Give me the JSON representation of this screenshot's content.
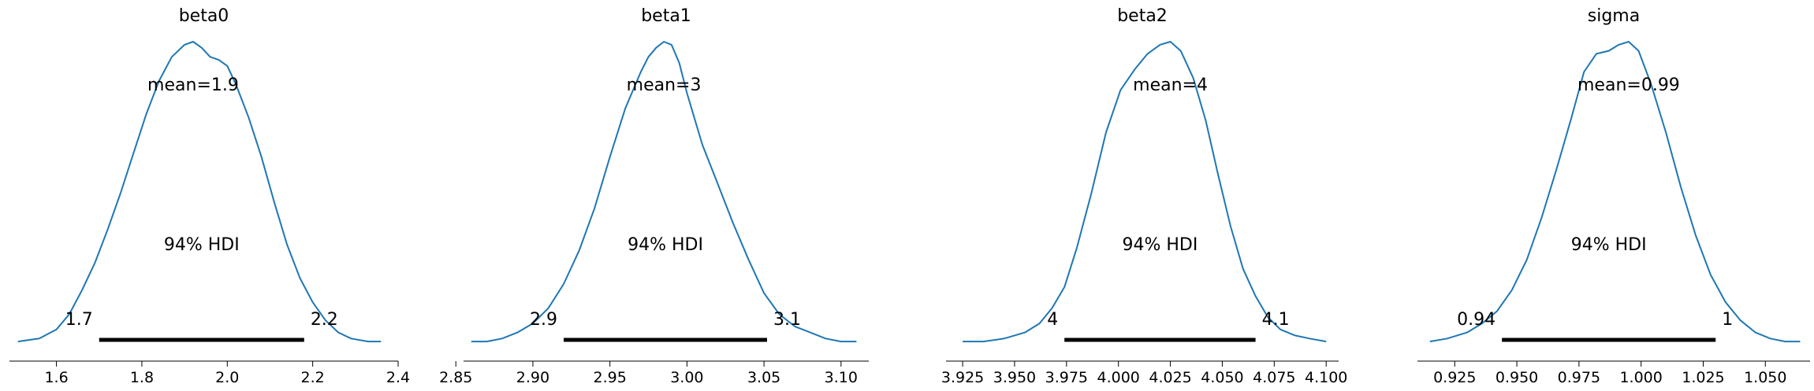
{
  "colors": {
    "kde_line": "#1f77b4",
    "hdi_bar": "#000000",
    "text": "#000000"
  },
  "chart_data": [
    {
      "type": "line",
      "title": "beta0",
      "mean_label": "mean=1.9",
      "hdi_label": "94% HDI",
      "hdi_low_label": "1.7",
      "hdi_high_label": "2.2",
      "hdi": [
        1.7,
        2.18
      ],
      "xlim": [
        1.49,
        2.4
      ],
      "xticks": [
        1.6,
        1.8,
        2.0,
        2.2,
        2.4
      ],
      "xtick_labels": [
        "1.6",
        "1.8",
        "2.0",
        "2.2",
        "2.4"
      ],
      "x": [
        1.51,
        1.56,
        1.6,
        1.63,
        1.66,
        1.69,
        1.72,
        1.75,
        1.78,
        1.81,
        1.84,
        1.87,
        1.9,
        1.92,
        1.94,
        1.96,
        1.98,
        2.0,
        2.02,
        2.05,
        2.08,
        2.11,
        2.14,
        2.17,
        2.2,
        2.23,
        2.26,
        2.29,
        2.33,
        2.36
      ],
      "density": [
        0.01,
        0.02,
        0.05,
        0.1,
        0.18,
        0.27,
        0.38,
        0.5,
        0.63,
        0.76,
        0.87,
        0.95,
        0.99,
        1.0,
        0.98,
        0.95,
        0.94,
        0.92,
        0.86,
        0.75,
        0.62,
        0.47,
        0.33,
        0.22,
        0.14,
        0.08,
        0.04,
        0.02,
        0.01,
        0.01
      ]
    },
    {
      "type": "line",
      "title": "beta1",
      "mean_label": "mean=3",
      "hdi_label": "94% HDI",
      "hdi_low_label": "2.9",
      "hdi_high_label": "3.1",
      "hdi": [
        2.92,
        3.052
      ],
      "xlim": [
        2.855,
        3.118
      ],
      "xticks": [
        2.85,
        2.9,
        2.95,
        3.0,
        3.05,
        3.1
      ],
      "xtick_labels": [
        "2.85",
        "2.90",
        "2.95",
        "3.00",
        "3.05",
        "3.10"
      ],
      "x": [
        2.86,
        2.87,
        2.88,
        2.89,
        2.9,
        2.91,
        2.92,
        2.93,
        2.94,
        2.95,
        2.96,
        2.97,
        2.975,
        2.98,
        2.985,
        2.99,
        2.995,
        3.0,
        3.01,
        3.02,
        3.03,
        3.04,
        3.05,
        3.06,
        3.07,
        3.08,
        3.09,
        3.1,
        3.11
      ],
      "density": [
        0.01,
        0.01,
        0.02,
        0.04,
        0.07,
        0.12,
        0.2,
        0.31,
        0.45,
        0.62,
        0.78,
        0.9,
        0.95,
        0.98,
        1.0,
        0.99,
        0.93,
        0.83,
        0.66,
        0.53,
        0.4,
        0.28,
        0.17,
        0.1,
        0.06,
        0.04,
        0.02,
        0.01,
        0.01
      ]
    },
    {
      "type": "line",
      "title": "beta2",
      "mean_label": "mean=4",
      "hdi_label": "94% HDI",
      "hdi_low_label": "4",
      "hdi_high_label": "4.1",
      "hdi": [
        3.974,
        4.066
      ],
      "xlim": [
        3.917,
        4.106
      ],
      "xticks": [
        3.925,
        3.95,
        3.975,
        4.0,
        4.025,
        4.05,
        4.075,
        4.1
      ],
      "xtick_labels": [
        "3.925",
        "3.950",
        "3.975",
        "4.000",
        "4.025",
        "4.050",
        "4.075",
        "4.100"
      ],
      "x": [
        3.925,
        3.935,
        3.945,
        3.955,
        3.962,
        3.968,
        3.974,
        3.98,
        3.987,
        3.994,
        4.001,
        4.008,
        4.014,
        4.02,
        4.025,
        4.03,
        4.036,
        4.042,
        4.048,
        4.054,
        4.06,
        4.066,
        4.072,
        4.078,
        4.085,
        4.092,
        4.1
      ],
      "density": [
        0.01,
        0.01,
        0.02,
        0.04,
        0.07,
        0.12,
        0.19,
        0.32,
        0.5,
        0.7,
        0.84,
        0.91,
        0.96,
        0.99,
        1.0,
        0.97,
        0.88,
        0.74,
        0.56,
        0.39,
        0.25,
        0.16,
        0.09,
        0.05,
        0.03,
        0.02,
        0.01
      ]
    },
    {
      "type": "line",
      "title": "sigma",
      "mean_label": "mean=0.99",
      "hdi_label": "94% HDI",
      "hdi_low_label": "0.94",
      "hdi_high_label": "1",
      "hdi": [
        0.944,
        1.03
      ],
      "xlim": [
        0.91,
        1.068
      ],
      "xticks": [
        0.925,
        0.95,
        0.975,
        1.0,
        1.025,
        1.05
      ],
      "xtick_labels": [
        "0.925",
        "0.950",
        "0.975",
        "1.000",
        "1.025",
        "1.050"
      ],
      "x": [
        0.915,
        0.922,
        0.93,
        0.936,
        0.942,
        0.948,
        0.954,
        0.96,
        0.966,
        0.972,
        0.977,
        0.982,
        0.987,
        0.991,
        0.995,
        0.999,
        1.004,
        1.01,
        1.016,
        1.022,
        1.028,
        1.034,
        1.04,
        1.046,
        1.052,
        1.058,
        1.064
      ],
      "density": [
        0.01,
        0.02,
        0.04,
        0.07,
        0.11,
        0.18,
        0.28,
        0.42,
        0.58,
        0.75,
        0.9,
        0.96,
        0.97,
        0.99,
        1.0,
        0.97,
        0.86,
        0.7,
        0.52,
        0.36,
        0.23,
        0.14,
        0.08,
        0.04,
        0.02,
        0.01,
        0.01
      ]
    }
  ]
}
